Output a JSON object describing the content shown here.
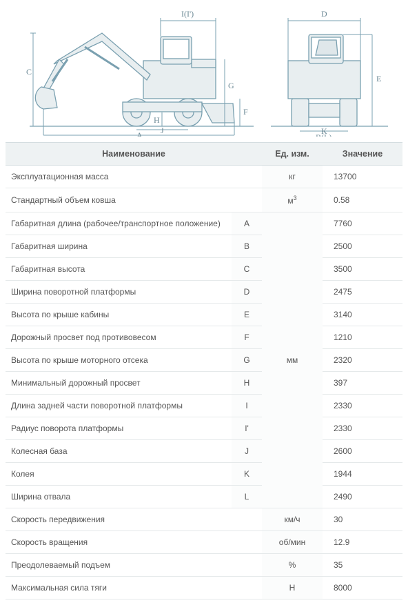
{
  "diagram": {
    "stroke": "#7aa0b0",
    "fill": "#e8eef0",
    "label_color": "#6d8a96",
    "label_fontsize": 12,
    "side_labels": [
      "I(I')",
      "C",
      "G",
      "F",
      "H",
      "J",
      "A"
    ],
    "front_labels": [
      "D",
      "E",
      "K",
      "B(L)"
    ]
  },
  "table": {
    "header_bg": "#eef2f3",
    "border_color": "#d4dde0",
    "text_color": "#555555",
    "columns": {
      "name": "Наименование",
      "unit": "Ед. изм.",
      "value": "Значение"
    },
    "groups": [
      {
        "unit": "кг",
        "rows": [
          {
            "name": "Эксплуатационная масса",
            "letter": "",
            "value": "13700"
          }
        ]
      },
      {
        "unit_html": "м<sup>3</sup>",
        "rows": [
          {
            "name": "Стандартный объем ковша",
            "letter": "",
            "value": "0.58"
          }
        ]
      },
      {
        "unit": "мм",
        "rows": [
          {
            "name": "Габаритная длина (рабочее/транспортное положение)",
            "letter": "A",
            "value": "7760"
          },
          {
            "name": "Габаритная ширина",
            "letter": "B",
            "value": "2500"
          },
          {
            "name": "Габаритная высота",
            "letter": "C",
            "value": "3500"
          },
          {
            "name": "Ширина поворотной платформы",
            "letter": "D",
            "value": "2475"
          },
          {
            "name": "Высота по крыше кабины",
            "letter": "E",
            "value": "3140"
          },
          {
            "name": "Дорожный просвет под противовесом",
            "letter": "F",
            "value": "1210"
          },
          {
            "name": "Высота по крыше моторного отсека",
            "letter": "G",
            "value": "2320"
          },
          {
            "name": "Минимальный дорожный просвет",
            "letter": "H",
            "value": "397"
          },
          {
            "name": "Длина задней части поворотной платформы",
            "letter": "I",
            "value": "2330"
          },
          {
            "name": "Радиус поворота платформы",
            "letter": "I'",
            "value": "2330"
          },
          {
            "name": "Колесная база",
            "letter": "J",
            "value": "2600"
          },
          {
            "name": "Колея",
            "letter": "K",
            "value": "1944"
          },
          {
            "name": "Ширина отвала",
            "letter": "L",
            "value": "2490"
          }
        ]
      },
      {
        "unit": "км/ч",
        "rows": [
          {
            "name": "Скорость передвижения",
            "letter": "",
            "value": "30"
          }
        ]
      },
      {
        "unit": "об/мин",
        "rows": [
          {
            "name": "Скорость вращения",
            "letter": "",
            "value": "12.9"
          }
        ]
      },
      {
        "unit": "%",
        "rows": [
          {
            "name": "Преодолеваемый подъем",
            "letter": "",
            "value": "35"
          }
        ]
      },
      {
        "unit": "Н",
        "rows": [
          {
            "name": "Максимальная сила тяги",
            "letter": "",
            "value": "8000"
          }
        ]
      }
    ]
  }
}
